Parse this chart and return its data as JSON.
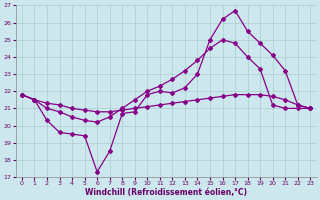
{
  "xlabel": "Windchill (Refroidissement éolien,°C)",
  "xlim": [
    -0.5,
    23.5
  ],
  "ylim": [
    17,
    27
  ],
  "yticks": [
    17,
    18,
    19,
    20,
    21,
    22,
    23,
    24,
    25,
    26,
    27
  ],
  "xticks": [
    0,
    1,
    2,
    3,
    4,
    5,
    6,
    7,
    8,
    9,
    10,
    11,
    12,
    13,
    14,
    15,
    16,
    17,
    18,
    19,
    20,
    21,
    22,
    23
  ],
  "bg_color": "#cce8ee",
  "grid_color": "#aacccc",
  "line_color": "#880088",
  "line1_x": [
    0,
    1,
    2,
    3,
    4,
    5,
    6,
    7,
    8,
    9,
    10,
    11,
    12,
    13,
    14,
    15,
    16,
    17,
    18,
    19,
    20,
    21,
    22,
    23
  ],
  "line1_y": [
    21.8,
    21.5,
    21.0,
    20.8,
    20.5,
    20.3,
    20.2,
    20.5,
    21.0,
    21.5,
    22.0,
    22.3,
    22.7,
    23.2,
    23.8,
    24.5,
    25.0,
    24.8,
    24.0,
    23.3,
    21.2,
    21.0,
    21.0,
    21.0
  ],
  "line2_x": [
    0,
    1,
    2,
    3,
    4,
    5,
    6,
    7,
    8,
    9,
    10,
    11,
    12,
    13,
    14,
    15,
    16,
    17,
    18,
    19,
    20,
    21,
    22,
    23
  ],
  "line2_y": [
    21.8,
    21.5,
    20.3,
    19.6,
    19.5,
    19.4,
    17.3,
    18.5,
    20.7,
    20.8,
    21.8,
    22.0,
    21.9,
    22.2,
    23.0,
    25.0,
    26.2,
    26.7,
    25.5,
    24.8,
    24.1,
    23.2,
    21.2,
    21.0
  ],
  "line3_x": [
    0,
    1,
    2,
    3,
    4,
    5,
    6,
    7,
    8,
    9,
    10,
    11,
    12,
    13,
    14,
    15,
    16,
    17,
    18,
    19,
    20,
    21,
    22,
    23
  ],
  "line3_y": [
    21.8,
    21.5,
    21.3,
    21.2,
    21.0,
    20.9,
    20.8,
    20.8,
    20.9,
    21.0,
    21.1,
    21.2,
    21.3,
    21.4,
    21.5,
    21.6,
    21.7,
    21.8,
    21.8,
    21.8,
    21.7,
    21.5,
    21.2,
    21.0
  ]
}
